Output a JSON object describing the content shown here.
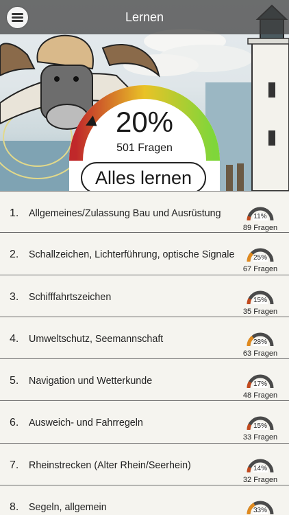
{
  "header": {
    "title": "Lernen",
    "menu_icon": "hamburger-menu-icon"
  },
  "overview": {
    "percent": "20%",
    "progress": 0.2,
    "total_questions": "501 Fragen",
    "learn_all_label": "Alles lernen"
  },
  "colors": {
    "low": "#c0282a",
    "mid": "#e9c227",
    "high": "#7fd63a",
    "mini_track": "#4a4a4a"
  },
  "topics": [
    {
      "number": "1.",
      "title": "Allgemeines/Zulassung Bau und Ausrüstung",
      "percent": "11%",
      "progress": 0.11,
      "count": "89 Fragen"
    },
    {
      "number": "2.",
      "title": "Schallzeichen, Lichterführung, optische Signale",
      "percent": "25%",
      "progress": 0.25,
      "count": "67 Fragen"
    },
    {
      "number": "3.",
      "title": "Schifffahrtszeichen",
      "percent": "15%",
      "progress": 0.15,
      "count": "35 Fragen"
    },
    {
      "number": "4.",
      "title": "Umweltschutz, Seemannschaft",
      "percent": "28%",
      "progress": 0.28,
      "count": "63 Fragen"
    },
    {
      "number": "5.",
      "title": "Navigation und Wetterkunde",
      "percent": "17%",
      "progress": 0.17,
      "count": "48 Fragen"
    },
    {
      "number": "6.",
      "title": "Ausweich- und Fahrregeln",
      "percent": "15%",
      "progress": 0.15,
      "count": "33 Fragen"
    },
    {
      "number": "7.",
      "title": "Rheinstrecken (Alter Rhein/Seerhein)",
      "percent": "14%",
      "progress": 0.14,
      "count": "32 Fragen"
    },
    {
      "number": "8.",
      "title": "Segeln, allgemein",
      "percent": "33%",
      "progress": 0.33,
      "count": ""
    }
  ]
}
